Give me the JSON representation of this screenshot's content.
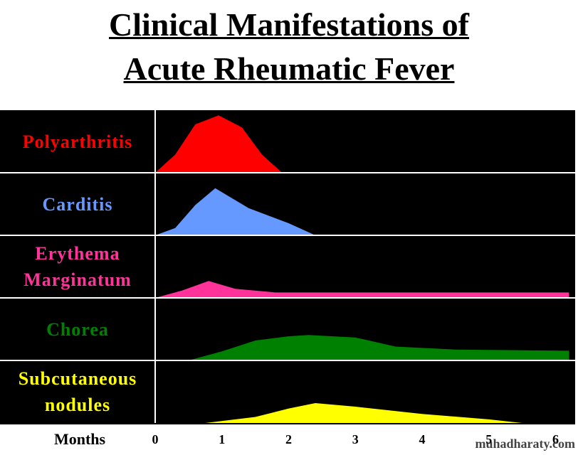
{
  "chart_data": {
    "type": "ridgeline",
    "title": [
      "Clinical Manifestations of",
      "Acute Rheumatic Fever"
    ],
    "xlabel": "Months",
    "xlim": [
      0,
      6.25
    ],
    "xticks": [
      0,
      1,
      2,
      3,
      4,
      5,
      6
    ],
    "ylim": [
      0,
      1
    ],
    "series": [
      {
        "name": "Polyarthritis",
        "color": "#ff0000",
        "x": [
          0,
          0.3,
          0.6,
          0.95,
          1.3,
          1.6,
          1.9
        ],
        "values": [
          0,
          0.3,
          0.8,
          0.95,
          0.75,
          0.3,
          0
        ]
      },
      {
        "name": "Carditis",
        "color": "#6699ff",
        "x": [
          0,
          0.3,
          0.6,
          0.9,
          1.4,
          2.0,
          2.4
        ],
        "values": [
          0,
          0.12,
          0.5,
          0.78,
          0.45,
          0.2,
          0
        ]
      },
      {
        "name": "Erythema Marginatum",
        "color": "#ff3399",
        "x": [
          0,
          0.4,
          0.8,
          1.2,
          1.8,
          6.2
        ],
        "values": [
          0,
          0.12,
          0.28,
          0.15,
          0.09,
          0.09
        ]
      },
      {
        "name": "Chorea",
        "color": "#008000",
        "x": [
          0.5,
          1.0,
          1.5,
          2.0,
          2.3,
          3.0,
          3.6,
          4.5,
          6.2
        ],
        "values": [
          0,
          0.15,
          0.33,
          0.4,
          0.42,
          0.38,
          0.23,
          0.18,
          0.16
        ]
      },
      {
        "name": "Subcutaneous nodules",
        "color": "#ffff00",
        "x": [
          0.75,
          1.5,
          2.0,
          2.4,
          3.0,
          4.0,
          5.0,
          5.5
        ],
        "values": [
          0,
          0.1,
          0.24,
          0.33,
          0.27,
          0.15,
          0.06,
          0
        ]
      }
    ],
    "watermark": "muhadharaty.com"
  }
}
